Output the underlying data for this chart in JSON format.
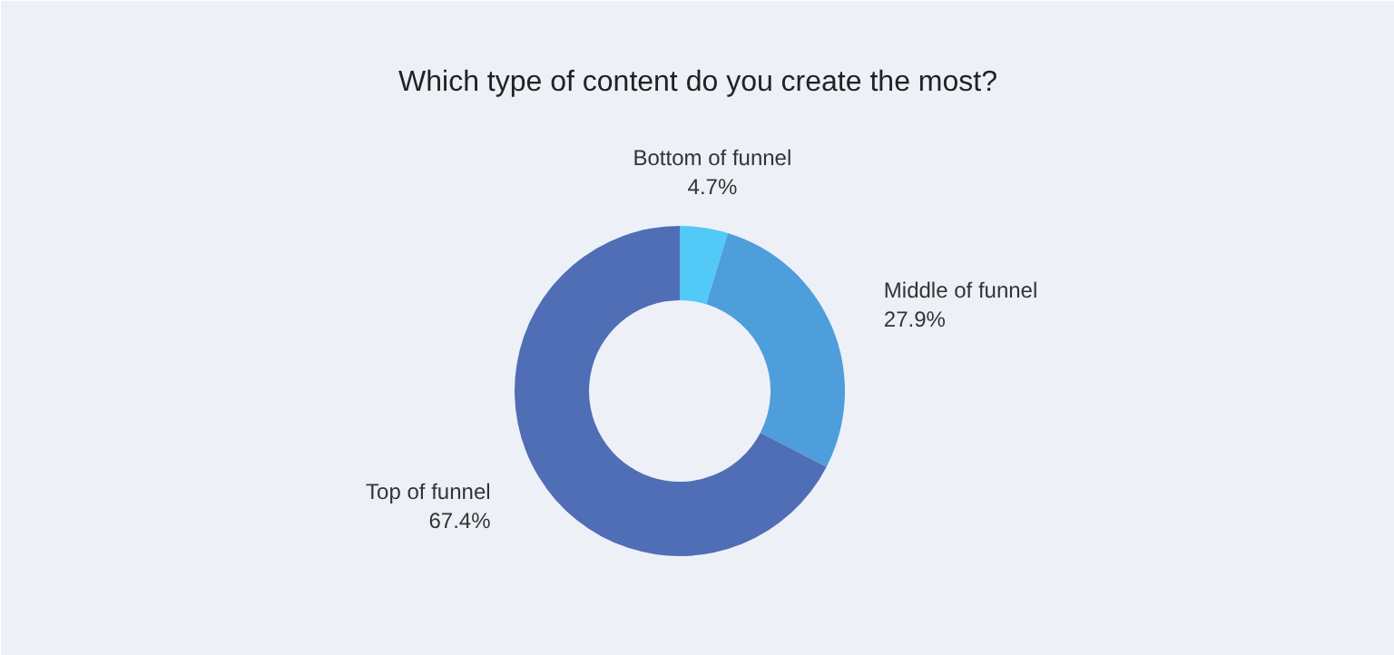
{
  "chart_data": {
    "type": "donut",
    "title": "Which type of content do you create the most?",
    "categories": [
      "Bottom of funnel",
      "Middle of funnel",
      "Top of funnel"
    ],
    "values": [
      4.7,
      27.9,
      67.4
    ],
    "colors": [
      "#52c9f6",
      "#4e9edc",
      "#4f6eb5"
    ],
    "value_labels": [
      "4.7%",
      "27.9%",
      "67.4%"
    ]
  }
}
